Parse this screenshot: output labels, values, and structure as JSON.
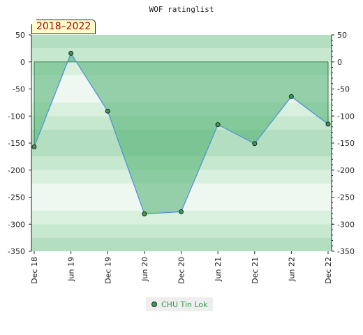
{
  "chart_data": {
    "type": "area",
    "title": "WOF ratinglist",
    "period_badge": "2018–2022",
    "categories": [
      "Dec 18",
      "Jun 19",
      "Dec 19",
      "Jun 20",
      "Dec 20",
      "Jun 21",
      "Dec 21",
      "Jun 22",
      "Dec 22"
    ],
    "series": [
      {
        "name": "CHU Tin Lok",
        "values": [
          -157,
          16,
          -91,
          -281,
          -277,
          -116,
          -151,
          -64,
          -115
        ]
      }
    ],
    "baseline": 0,
    "ylim": [
      -350,
      50
    ],
    "yticks": [
      50,
      0,
      -50,
      -100,
      -150,
      -200,
      -250,
      -300,
      -350
    ],
    "secondary_y_axis": true,
    "legend_position": "bottom-center",
    "colors": {
      "line": "#4a90d9",
      "area_fill": "#4caf70",
      "marker": "#3a9a4f",
      "band_dark": "#b3dfc0",
      "band_light": "#eef7f0"
    }
  }
}
